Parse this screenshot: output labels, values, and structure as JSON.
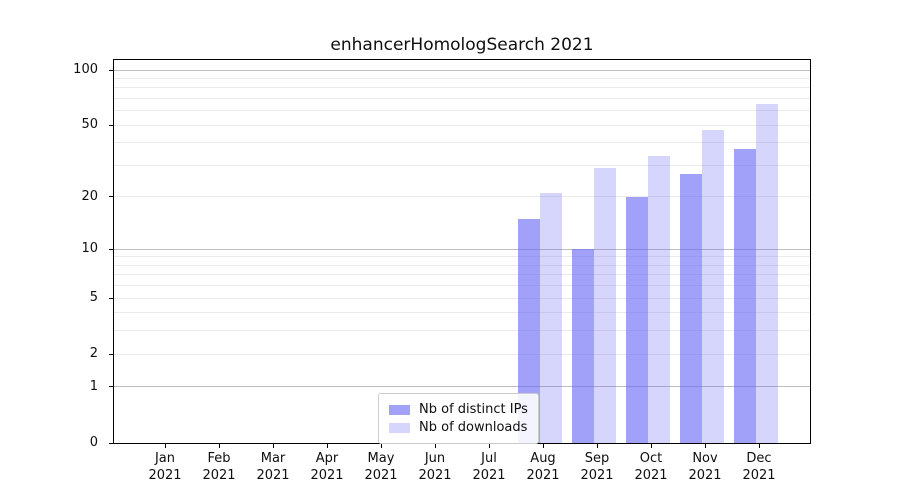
{
  "chart_data": {
    "type": "bar",
    "title": "enhancerHomologSearch 2021",
    "categories": [
      "Jan",
      "Feb",
      "Mar",
      "Apr",
      "May",
      "Jun",
      "Jul",
      "Aug",
      "Sep",
      "Oct",
      "Nov",
      "Dec"
    ],
    "year_label": "2021",
    "series": [
      {
        "name": "Nb of distinct IPs",
        "color": "rgba(103,103,245,0.62)",
        "approx_hex_on_white": "#a1a1fb",
        "values": [
          0,
          0,
          0,
          0,
          0,
          0,
          0,
          15,
          10,
          20,
          27,
          37
        ]
      },
      {
        "name": "Nb of downloads",
        "color": "rgba(103,103,245,0.27)",
        "approx_hex_on_white": "#d6d6fc",
        "values": [
          0,
          0,
          0,
          0,
          0,
          0,
          0,
          21,
          29,
          34,
          47,
          65
        ]
      }
    ],
    "xlabel": "",
    "ylabel": "",
    "yscale": "log1p",
    "ylim": [
      0,
      113
    ],
    "yticks": [
      100,
      50,
      20,
      10,
      5,
      2,
      1,
      0
    ],
    "ytick_labels": [
      "100",
      "50",
      "20",
      "10",
      "5",
      "2",
      "1",
      "0"
    ],
    "grid": {
      "on": true,
      "major": [
        1,
        10,
        100
      ],
      "minor": [
        2,
        3,
        4,
        5,
        6,
        7,
        8,
        9,
        20,
        30,
        40,
        50,
        60,
        70,
        80,
        90
      ]
    },
    "legend": {
      "position": "lower center",
      "entries": [
        "Nb of distinct IPs",
        "Nb of downloads"
      ]
    }
  }
}
